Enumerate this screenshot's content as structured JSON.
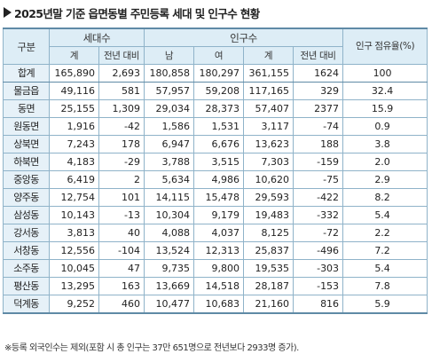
{
  "title": "2025년말 기준 읍면동별 주민등록 세대 및 인구수 현황",
  "headers": {
    "region": "구분",
    "households": "세대수",
    "population": "인구수",
    "share": "인구 점유율(%)",
    "hh_total": "계",
    "hh_change": "전년 대비",
    "male": "남",
    "female": "여",
    "pop_total": "계",
    "pop_change": "전년 대비"
  },
  "rows": [
    {
      "name": "합계",
      "hh": "165,890",
      "hh_chg": "2,693",
      "male": "180,858",
      "female": "180,297",
      "total": "361,155",
      "chg": "1624",
      "share": "100"
    },
    {
      "name": "물금읍",
      "hh": "49,116",
      "hh_chg": "581",
      "male": "57,957",
      "female": "59,208",
      "total": "117,165",
      "chg": "329",
      "share": "32.4"
    },
    {
      "name": "동면",
      "hh": "25,155",
      "hh_chg": "1,309",
      "male": "29,034",
      "female": "28,373",
      "total": "57,407",
      "chg": "2377",
      "share": "15.9"
    },
    {
      "name": "원동면",
      "hh": "1,916",
      "hh_chg": "-42",
      "male": "1,586",
      "female": "1,531",
      "total": "3,117",
      "chg": "-74",
      "share": "0.9"
    },
    {
      "name": "상북면",
      "hh": "7,243",
      "hh_chg": "178",
      "male": "6,947",
      "female": "6,676",
      "total": "13,623",
      "chg": "188",
      "share": "3.8"
    },
    {
      "name": "하북면",
      "hh": "4,183",
      "hh_chg": "-29",
      "male": "3,788",
      "female": "3,515",
      "total": "7,303",
      "chg": "-159",
      "share": "2.0"
    },
    {
      "name": "중앙동",
      "hh": "6,419",
      "hh_chg": "2",
      "male": "5,634",
      "female": "4,986",
      "total": "10,620",
      "chg": "-75",
      "share": "2.9"
    },
    {
      "name": "양주동",
      "hh": "12,754",
      "hh_chg": "101",
      "male": "14,115",
      "female": "15,478",
      "total": "29,593",
      "chg": "-422",
      "share": "8.2"
    },
    {
      "name": "삼성동",
      "hh": "10,143",
      "hh_chg": "-13",
      "male": "10,304",
      "female": "9,179",
      "total": "19,483",
      "chg": "-332",
      "share": "5.4"
    },
    {
      "name": "강서동",
      "hh": "3,813",
      "hh_chg": "40",
      "male": "4,088",
      "female": "4,037",
      "total": "8,125",
      "chg": "-72",
      "share": "2.2"
    },
    {
      "name": "서창동",
      "hh": "12,556",
      "hh_chg": "-104",
      "male": "13,524",
      "female": "12,313",
      "total": "25,837",
      "chg": "-496",
      "share": "7.2"
    },
    {
      "name": "소주동",
      "hh": "10,045",
      "hh_chg": "47",
      "male": "9,735",
      "female": "9,800",
      "total": "19,535",
      "chg": "-303",
      "share": "5.4"
    },
    {
      "name": "평산동",
      "hh": "13,295",
      "hh_chg": "163",
      "male": "13,669",
      "female": "14,518",
      "total": "28,187",
      "chg": "-153",
      "share": "7.8"
    },
    {
      "name": "덕계동",
      "hh": "9,252",
      "hh_chg": "460",
      "male": "10,477",
      "female": "10,683",
      "total": "21,160",
      "chg": "816",
      "share": "5.9"
    }
  ],
  "footnote": "※등록 외국인수는 제외(포함 시 총 인구는 37만 651명으로 전년보다 2933명 증가)."
}
